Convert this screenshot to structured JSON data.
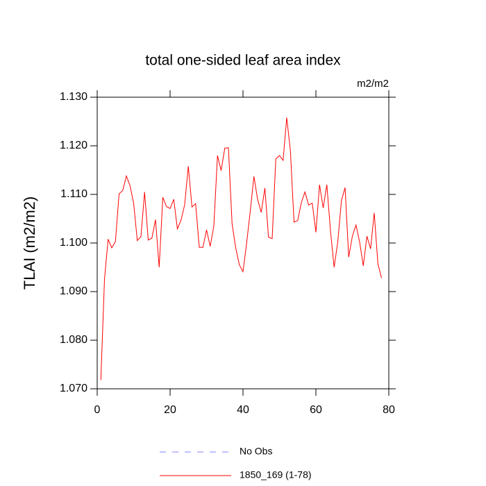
{
  "chart_data": {
    "type": "line",
    "title": "total one-sided leaf area index",
    "units": "m2/m2",
    "y_label": "TLAI  (m2/m2)",
    "x": [
      1,
      2,
      3,
      4,
      5,
      6,
      7,
      8,
      9,
      10,
      11,
      12,
      13,
      14,
      15,
      16,
      17,
      18,
      19,
      20,
      21,
      22,
      23,
      24,
      25,
      26,
      27,
      28,
      29,
      30,
      31,
      32,
      33,
      34,
      35,
      36,
      37,
      38,
      39,
      40,
      41,
      42,
      43,
      44,
      45,
      46,
      47,
      48,
      49,
      50,
      51,
      52,
      53,
      54,
      55,
      56,
      57,
      58,
      59,
      60,
      61,
      62,
      63,
      64,
      65,
      66,
      67,
      68,
      69,
      70,
      71,
      72,
      73,
      74,
      75,
      76,
      77,
      78
    ],
    "series": [
      {
        "name": "1850_169 (1-78)",
        "color": "#ff0000",
        "values": [
          1.0718,
          1.0925,
          1.1008,
          1.099,
          1.1003,
          1.1101,
          1.1108,
          1.1138,
          1.1118,
          1.1082,
          1.1005,
          1.1013,
          1.1105,
          1.1006,
          1.101,
          1.1048,
          1.095,
          1.1094,
          1.1075,
          1.1071,
          1.109,
          1.1029,
          1.1047,
          1.1079,
          1.1158,
          1.1074,
          1.1081,
          1.0991,
          1.0991,
          1.1027,
          1.0993,
          1.1035,
          1.118,
          1.1149,
          1.1195,
          1.1196,
          1.104,
          1.099,
          1.0955,
          1.0941,
          1.1,
          1.1066,
          1.1137,
          1.109,
          1.1063,
          1.1113,
          1.1012,
          1.1009,
          1.1173,
          1.118,
          1.117,
          1.1258,
          1.119,
          1.1043,
          1.1046,
          1.1083,
          1.1105,
          1.1078,
          1.1082,
          1.1022,
          1.112,
          1.1072,
          1.112,
          1.1025,
          1.095,
          1.1002,
          1.1087,
          1.1114,
          1.0971,
          1.1014,
          1.1037,
          1.1002,
          1.0953,
          1.1014,
          1.0988,
          1.1062,
          1.0958,
          1.0928
        ]
      }
    ],
    "reference": {
      "name": "No Obs",
      "color": "#8080ff",
      "dashed": true
    },
    "xlim": [
      0,
      80
    ],
    "xticks": [
      0,
      20,
      40,
      60,
      80
    ],
    "ylim": [
      1.07,
      1.13
    ],
    "yticks": [
      {
        "value": 1.07,
        "label": "1.070"
      },
      {
        "value": 1.08,
        "label": "1.080"
      },
      {
        "value": 1.09,
        "label": "1.090"
      },
      {
        "value": 1.1,
        "label": "1.100"
      },
      {
        "value": 1.11,
        "label": "1.110"
      },
      {
        "value": 1.12,
        "label": "1.120"
      },
      {
        "value": 1.13,
        "label": "1.130"
      }
    ]
  }
}
